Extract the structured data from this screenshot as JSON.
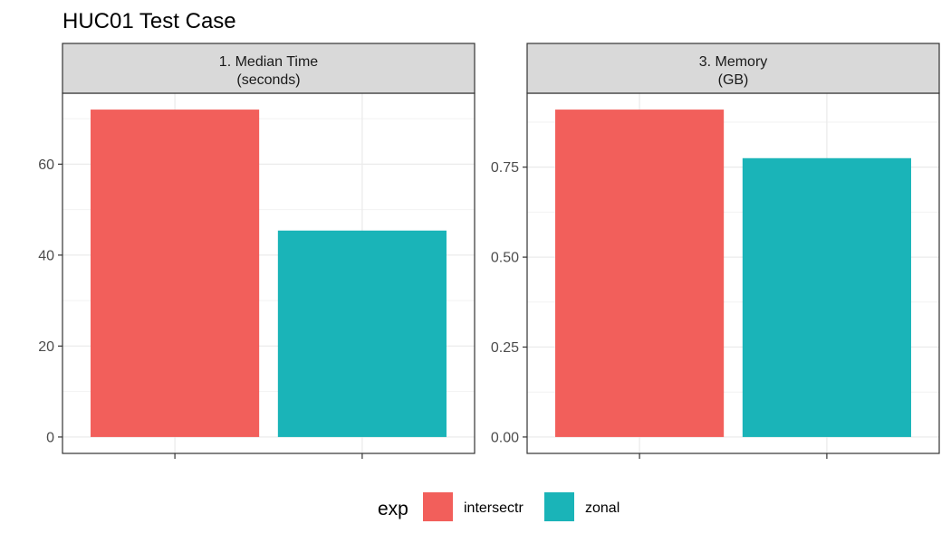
{
  "chart_data": {
    "type": "bar",
    "title": "HUC01 Test Case",
    "categories": [
      "intersectr",
      "zonal"
    ],
    "facets": [
      {
        "strip_lines": [
          "1. Median Time",
          "(seconds)"
        ],
        "values": [
          72.0,
          45.4
        ],
        "ylim": [
          -3.6,
          75.6
        ],
        "ticks": [
          0,
          20,
          40,
          60
        ],
        "tick_labels": [
          "0",
          "20",
          "40",
          "60"
        ]
      },
      {
        "strip_lines": [
          "3. Memory",
          "(GB)"
        ],
        "values": [
          0.91,
          0.775
        ],
        "ylim": [
          -0.0455,
          0.9555
        ],
        "ticks": [
          0,
          0.25,
          0.5,
          0.75
        ],
        "tick_labels": [
          "0.00",
          "0.25",
          "0.50",
          "0.75"
        ]
      }
    ],
    "legend": {
      "title": "exp",
      "position": "bottom",
      "items": [
        {
          "label": "intersectr",
          "color": "#F25F5B"
        },
        {
          "label": "zonal",
          "color": "#1AB4B8"
        }
      ]
    },
    "grid": true,
    "xlabel": "",
    "ylabel": ""
  }
}
